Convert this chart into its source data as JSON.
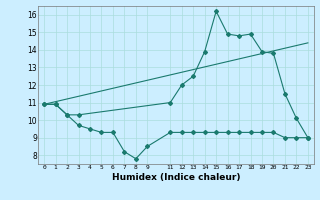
{
  "title": "",
  "xlabel": "Humidex (Indice chaleur)",
  "bg_color": "#cceeff",
  "line_color": "#1a7a6e",
  "grid_color": "#aadddd",
  "xlim": [
    -0.5,
    23.5
  ],
  "ylim": [
    7.5,
    16.5
  ],
  "yticks": [
    8,
    9,
    10,
    11,
    12,
    13,
    14,
    15,
    16
  ],
  "xticks": [
    0,
    1,
    2,
    3,
    4,
    5,
    6,
    7,
    8,
    9,
    11,
    12,
    13,
    14,
    15,
    16,
    17,
    18,
    19,
    20,
    21,
    22,
    23
  ],
  "xtick_labels": [
    "0",
    "1",
    "2",
    "3",
    "4",
    "5",
    "6",
    "7",
    "8",
    "9",
    "11",
    "12",
    "13",
    "14",
    "15",
    "16",
    "17",
    "18",
    "19",
    "20",
    "21",
    "22",
    "23"
  ],
  "line1_x": [
    0,
    1,
    2,
    3,
    4,
    5,
    6,
    7,
    8,
    9,
    11,
    12,
    13,
    14,
    15,
    16,
    17,
    18,
    19,
    20,
    21,
    22,
    23
  ],
  "line1_y": [
    10.9,
    10.9,
    10.3,
    9.7,
    9.5,
    9.3,
    9.3,
    8.2,
    7.8,
    8.5,
    9.3,
    9.3,
    9.3,
    9.3,
    9.3,
    9.3,
    9.3,
    9.3,
    9.3,
    9.3,
    9.0,
    9.0,
    9.0
  ],
  "line2_x": [
    0,
    1,
    2,
    3,
    11,
    12,
    13,
    14,
    15,
    16,
    17,
    18,
    19,
    20,
    21,
    22,
    23
  ],
  "line2_y": [
    10.9,
    10.9,
    10.3,
    10.3,
    11.0,
    12.0,
    12.5,
    13.9,
    16.2,
    14.9,
    14.8,
    14.9,
    13.9,
    13.8,
    11.5,
    10.1,
    9.0
  ],
  "line3_x": [
    0,
    23
  ],
  "line3_y": [
    10.9,
    14.4
  ]
}
